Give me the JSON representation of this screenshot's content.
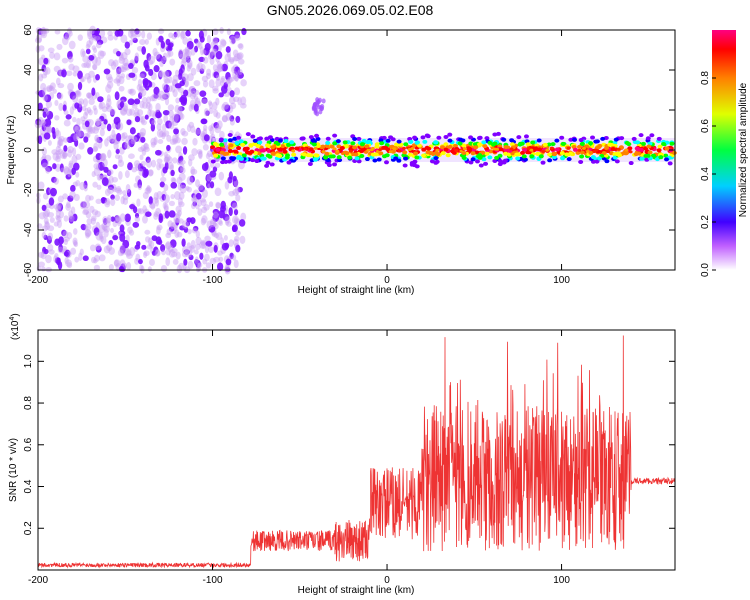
{
  "title": "GN05.2026.069.05.02.E08",
  "chart_data": [
    {
      "type": "heatmap",
      "xlabel": "Height of straight line (km)",
      "ylabel": "Frequency (Hz)",
      "xlim": [
        -200,
        165
      ],
      "ylim": [
        -60,
        60
      ],
      "xticks": [
        -200,
        -100,
        0,
        100
      ],
      "xtick_labels": [
        "-200",
        "-100",
        "0",
        "100"
      ],
      "yticks": [
        60,
        40,
        20,
        0,
        -20,
        -40,
        -60
      ],
      "ytick_labels": [
        "60",
        "40",
        "20",
        "0",
        "-20",
        "-40",
        "-60"
      ],
      "colorbar": {
        "label": "Normalized spectral amplitude",
        "range": [
          0,
          1
        ],
        "ticks": [
          0.0,
          0.2,
          0.4,
          0.6,
          0.8
        ],
        "tick_labels": [
          "0.0",
          "0.2",
          "0.4",
          "0.6",
          "0.8"
        ],
        "colors": [
          "#ffffff",
          "#8000ff",
          "#0000ff",
          "#00ffff",
          "#00ff00",
          "#ffff00",
          "#ff8000",
          "#ff0000",
          "#ff0080"
        ]
      },
      "regions": [
        {
          "name": "noise",
          "x": [
            -200,
            -82
          ],
          "y": [
            -60,
            60
          ],
          "level": 0.15
        },
        {
          "name": "signal-band",
          "x": [
            -100,
            165
          ],
          "center_hz": 0,
          "halfwidth_hz": 6,
          "level": 0.45
        },
        {
          "name": "side-blob",
          "x": [
            -42,
            -36
          ],
          "center_hz": 22,
          "level": 0.2
        }
      ]
    },
    {
      "type": "line",
      "xlabel": "Height of straight line (km)",
      "ylabel": "SNR (10 * v/v)",
      "scale_label": "(x10",
      "scale_exp": "4",
      "scale_close": ")",
      "xlim": [
        -200,
        165
      ],
      "ylim": [
        0,
        1.15
      ],
      "xticks": [
        -200,
        -100,
        0,
        100
      ],
      "xtick_labels": [
        "-200",
        "-100",
        "0",
        "100"
      ],
      "yticks": [
        0.2,
        0.4,
        0.6,
        0.8,
        1.0
      ],
      "ytick_labels": [
        "0.2",
        "0.4",
        "0.6",
        "0.8",
        "1.0"
      ],
      "color": "#ee3333",
      "segments": [
        {
          "x": [
            -200,
            -78
          ],
          "base": 0.02,
          "amp": 0.02
        },
        {
          "x": [
            -78,
            -30
          ],
          "base": 0.12,
          "amp": 0.1
        },
        {
          "x": [
            -30,
            -10
          ],
          "base": 0.1,
          "amp": 0.2
        },
        {
          "x": [
            -10,
            20
          ],
          "base": 0.25,
          "amp": 0.35
        },
        {
          "x": [
            20,
            140
          ],
          "base": 0.3,
          "amp": 0.7
        },
        {
          "x": [
            140,
            165
          ],
          "base": 0.42,
          "amp": 0.03
        }
      ]
    }
  ]
}
